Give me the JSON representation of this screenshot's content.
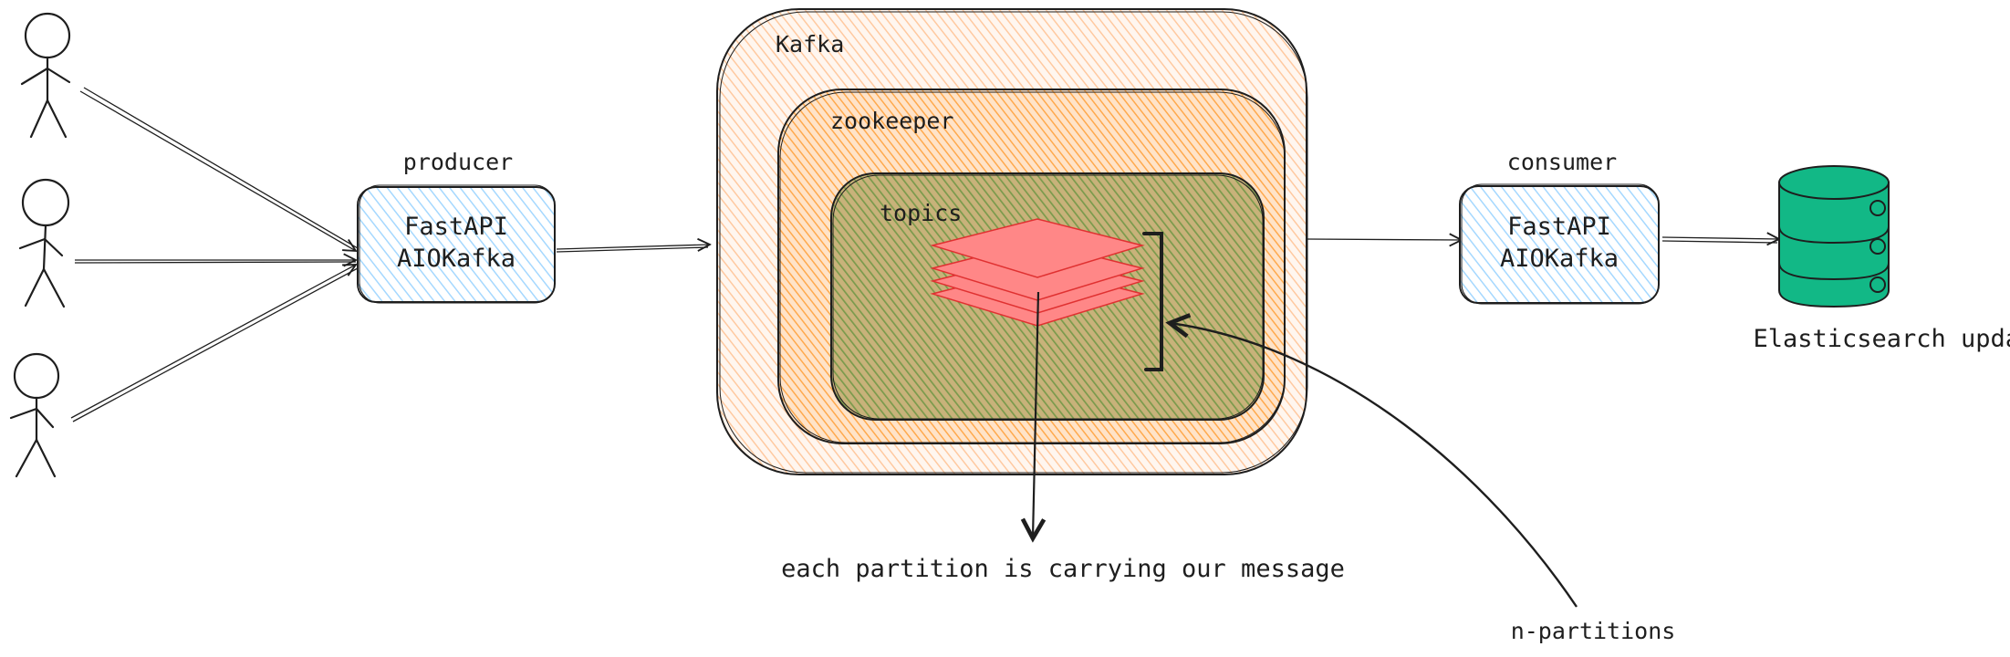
{
  "labels": {
    "producer": "producer",
    "consumer": "consumer",
    "kafka": "Kafka",
    "zookeeper": "zookeeper",
    "topics": "topics",
    "producer_line1": "FastAPI",
    "producer_line2": "AIOKafka",
    "consumer_line1": "FastAPI",
    "consumer_line2": "AIOKafka",
    "elasticsearch": "Elasticsearch update",
    "partition_note": "each partition is carrying our message",
    "n_partitions": "n-partitions"
  },
  "colors": {
    "stroke": "#1e1e1e",
    "service_fill": "#a5d8ff",
    "kafka_fill": "#ffc9a0",
    "zookeeper_fill": "#ffa94d",
    "topics_fill": "#8aa65a",
    "partition_fill": "#ff8787",
    "partition_stroke": "#e03131",
    "db_fill": "#12b886",
    "service_text": "#1971c2"
  },
  "icons": {
    "user": "stick-figure-icon",
    "database": "database-icon",
    "partitions": "partition-stack-icon"
  }
}
